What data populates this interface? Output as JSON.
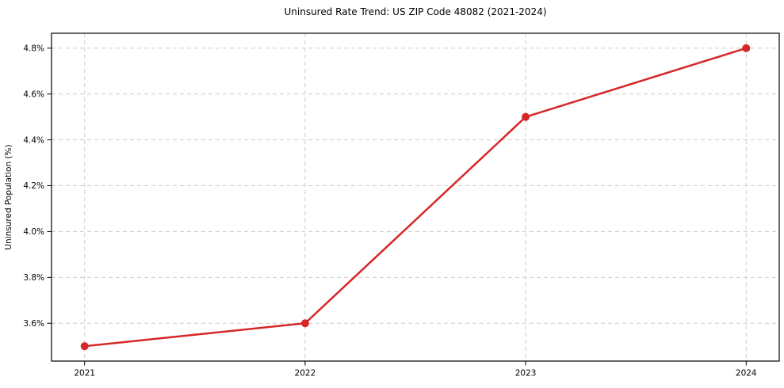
{
  "chart_data": {
    "type": "line",
    "title": "Uninsured Rate Trend: US ZIP Code 48082 (2021-2024)",
    "xlabel": "",
    "ylabel": "Uninsured Population (%)",
    "x": [
      2021,
      2022,
      2023,
      2024
    ],
    "values": [
      3.5,
      3.6,
      4.5,
      4.8
    ],
    "x_tick_labels": [
      "2021",
      "2022",
      "2023",
      "2024"
    ],
    "y_tick_values": [
      3.6,
      3.8,
      4.0,
      4.2,
      4.4,
      4.6,
      4.8
    ],
    "y_tick_labels": [
      "3.6%",
      "3.8%",
      "4.0%",
      "4.2%",
      "4.4%",
      "4.6%",
      "4.8%"
    ],
    "xlim": [
      2020.85,
      2024.15
    ],
    "ylim": [
      3.435,
      4.865
    ],
    "grid": true,
    "grid_style": "dashed",
    "legend_position": "none",
    "line_color": "#d62728",
    "marker": "circle",
    "grid_color": "#cccccc",
    "spine_color": "#000000",
    "text_color": "#000000",
    "background_color": "#ffffff"
  }
}
